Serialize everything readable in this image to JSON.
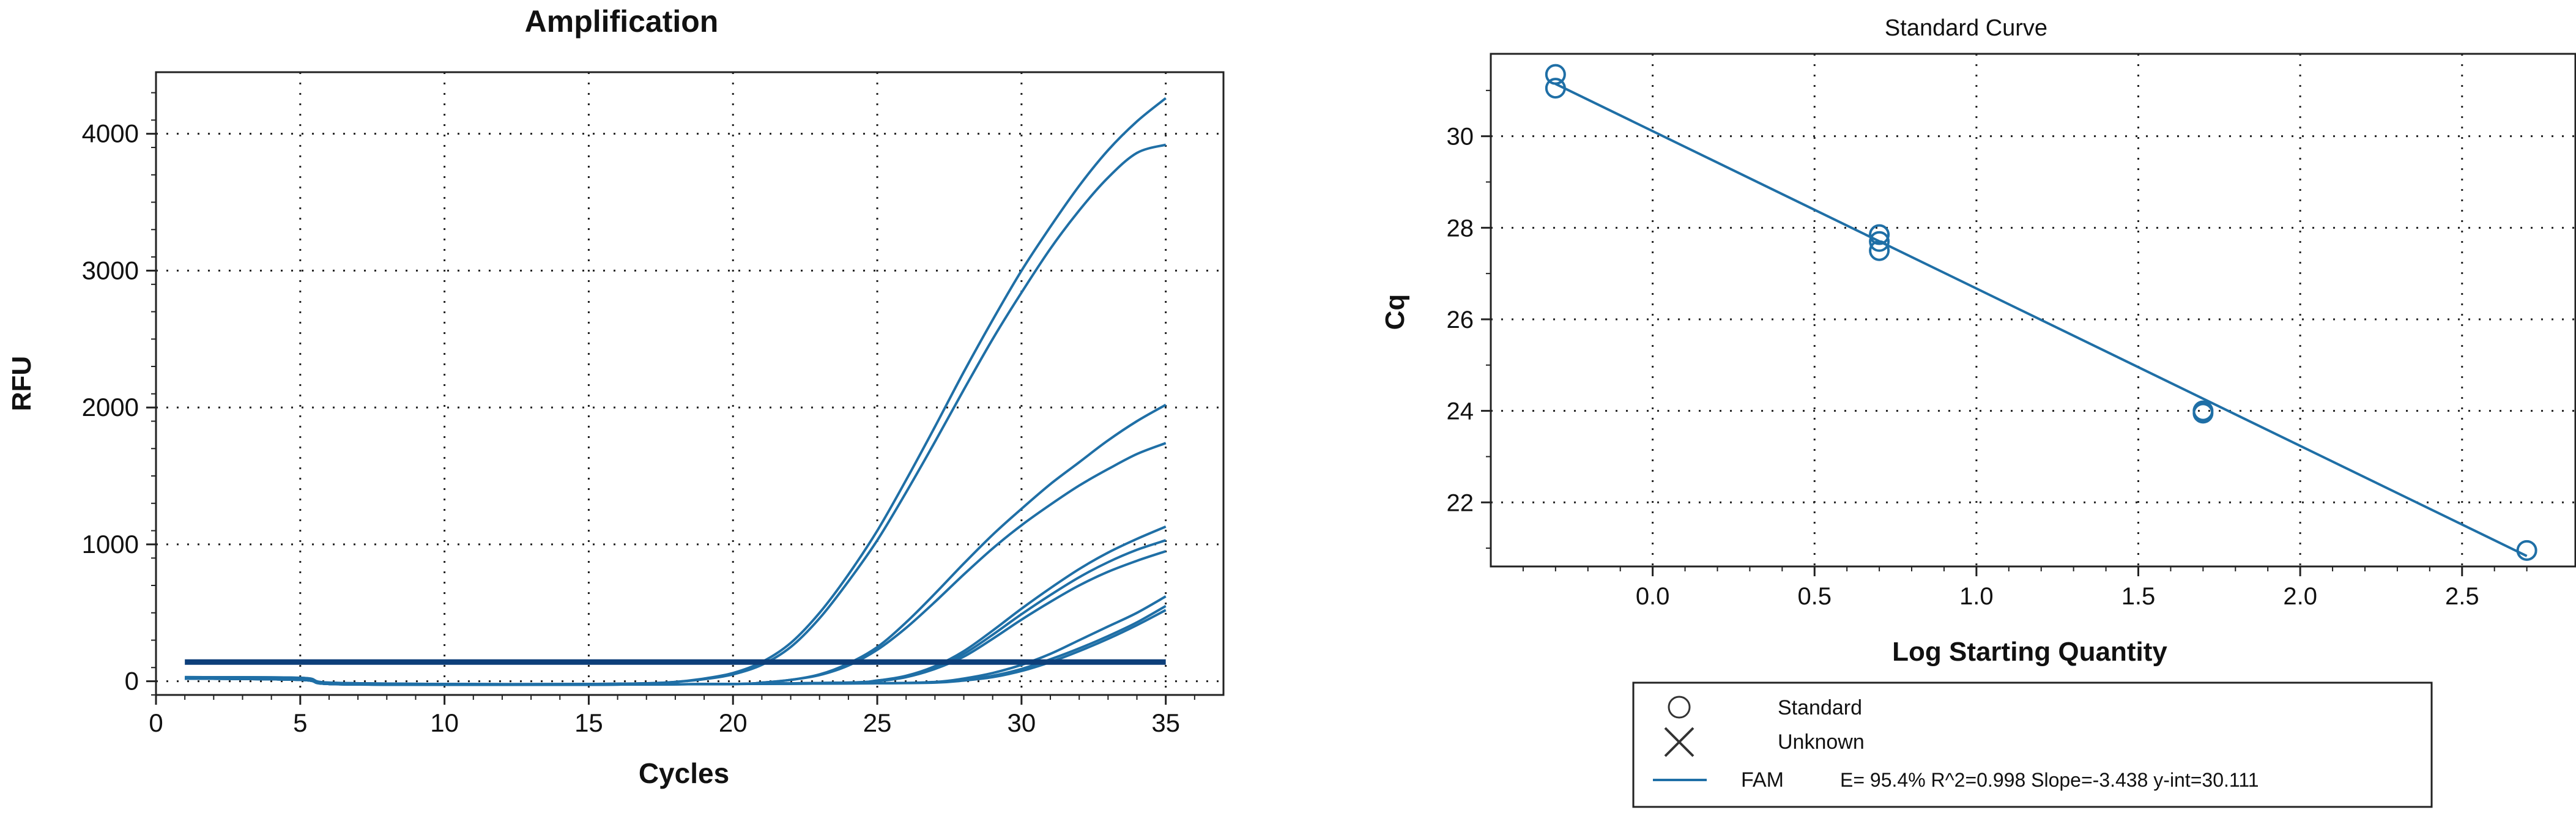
{
  "chart_data": [
    {
      "type": "line",
      "title": "Amplification",
      "xlabel": "Cycles",
      "ylabel": "RFU",
      "xlim": [
        0,
        37
      ],
      "ylim": [
        -100,
        4450
      ],
      "xticks": [
        0,
        5,
        10,
        15,
        20,
        25,
        30,
        35
      ],
      "yticks": [
        0,
        1000,
        2000,
        3000,
        4000
      ],
      "grid": true,
      "line_color": "#1f6fa6",
      "threshold": {
        "value": 140,
        "x_range": [
          1,
          35
        ],
        "color": "#0d3f7a"
      },
      "series": [
        {
          "x": [
            1,
            5,
            6,
            10,
            15,
            17,
            18,
            19,
            20,
            21,
            22,
            23,
            24,
            25,
            26,
            27,
            28,
            29,
            30,
            31,
            32,
            33,
            34,
            35
          ],
          "values": [
            30,
            25,
            -10,
            -20,
            -20,
            -15,
            -5,
            20,
            60,
            140,
            280,
            500,
            780,
            1100,
            1470,
            1860,
            2260,
            2640,
            3000,
            3320,
            3620,
            3880,
            4090,
            4260
          ]
        },
        {
          "x": [
            1,
            5,
            6,
            10,
            15,
            17,
            18,
            19,
            20,
            21,
            22,
            23,
            24,
            25,
            26,
            27,
            28,
            29,
            30,
            31,
            32,
            33,
            34,
            35
          ],
          "values": [
            30,
            25,
            -10,
            -20,
            -20,
            -15,
            -5,
            15,
            50,
            120,
            250,
            460,
            730,
            1030,
            1380,
            1750,
            2130,
            2500,
            2840,
            3160,
            3440,
            3680,
            3860,
            3920
          ]
        },
        {
          "x": [
            1,
            5,
            6,
            10,
            15,
            20,
            21,
            22,
            23,
            24,
            25,
            26,
            27,
            28,
            29,
            30,
            31,
            32,
            33,
            34,
            35
          ],
          "values": [
            20,
            15,
            -20,
            -25,
            -25,
            -20,
            -10,
            10,
            50,
            130,
            250,
            430,
            640,
            860,
            1070,
            1260,
            1440,
            1600,
            1760,
            1900,
            2020
          ]
        },
        {
          "x": [
            1,
            5,
            6,
            10,
            15,
            20,
            21,
            22,
            23,
            24,
            25,
            26,
            27,
            28,
            29,
            30,
            31,
            32,
            33,
            34,
            35
          ],
          "values": [
            20,
            15,
            -20,
            -25,
            -25,
            -20,
            -10,
            10,
            45,
            115,
            230,
            390,
            580,
            780,
            970,
            1140,
            1290,
            1430,
            1550,
            1660,
            1740
          ]
        },
        {
          "x": [
            1,
            5,
            6,
            10,
            15,
            20,
            24,
            25,
            26,
            27,
            28,
            29,
            30,
            31,
            32,
            33,
            34,
            35
          ],
          "values": [
            20,
            10,
            -20,
            -25,
            -25,
            -20,
            -10,
            5,
            40,
            110,
            220,
            370,
            530,
            680,
            820,
            940,
            1040,
            1130
          ]
        },
        {
          "x": [
            1,
            5,
            6,
            10,
            15,
            20,
            24,
            25,
            26,
            27,
            28,
            29,
            30,
            31,
            32,
            33,
            34,
            35
          ],
          "values": [
            20,
            10,
            -20,
            -25,
            -25,
            -20,
            -10,
            5,
            35,
            100,
            200,
            340,
            490,
            630,
            760,
            870,
            960,
            1030
          ]
        },
        {
          "x": [
            1,
            5,
            6,
            10,
            15,
            20,
            24,
            25,
            26,
            27,
            28,
            29,
            30,
            31,
            32,
            33,
            34,
            35
          ],
          "values": [
            20,
            10,
            -20,
            -25,
            -25,
            -20,
            -10,
            0,
            30,
            90,
            180,
            310,
            450,
            580,
            700,
            800,
            880,
            950
          ]
        },
        {
          "x": [
            1,
            5,
            6,
            10,
            15,
            20,
            25,
            27,
            28,
            29,
            30,
            31,
            32,
            33,
            34,
            35
          ],
          "values": [
            20,
            10,
            -20,
            -25,
            -25,
            -20,
            -15,
            -5,
            20,
            60,
            120,
            200,
            300,
            400,
            500,
            620
          ]
        },
        {
          "x": [
            1,
            5,
            6,
            10,
            15,
            20,
            25,
            27,
            28,
            29,
            30,
            31,
            32,
            33,
            34,
            35
          ],
          "values": [
            20,
            10,
            -20,
            -25,
            -25,
            -20,
            -15,
            -8,
            10,
            40,
            90,
            160,
            240,
            330,
            430,
            550
          ]
        },
        {
          "x": [
            1,
            5,
            6,
            10,
            15,
            20,
            25,
            27,
            28,
            29,
            30,
            31,
            32,
            33,
            34,
            35
          ],
          "values": [
            20,
            10,
            -20,
            -25,
            -25,
            -20,
            -15,
            -10,
            5,
            30,
            75,
            140,
            220,
            310,
            410,
            520
          ]
        }
      ]
    },
    {
      "type": "scatter",
      "title": "Standard Curve",
      "xlabel": "Log Starting Quantity",
      "ylabel": "Cq",
      "xlim": [
        -0.5,
        2.85
      ],
      "ylim": [
        20.6,
        31.8
      ],
      "xticks": [
        0.0,
        0.5,
        1.0,
        1.5,
        2.0,
        2.5
      ],
      "xtick_labels": [
        "0.0",
        "0.5",
        "1.0",
        "1.5",
        "2.0",
        "2.5"
      ],
      "yticks": [
        22,
        24,
        26,
        28,
        30
      ],
      "grid": true,
      "color": "#1f6fa6",
      "points": [
        {
          "x": -0.3,
          "y": 31.35
        },
        {
          "x": -0.3,
          "y": 31.05
        },
        {
          "x": 0.7,
          "y": 27.85
        },
        {
          "x": 0.7,
          "y": 27.7
        },
        {
          "x": 0.7,
          "y": 27.5
        },
        {
          "x": 1.7,
          "y": 24.0
        },
        {
          "x": 1.7,
          "y": 23.95
        },
        {
          "x": 2.7,
          "y": 20.95
        }
      ],
      "fit_line": {
        "slope": -3.438,
        "intercept": 30.111,
        "x_range": [
          -0.3,
          2.7
        ]
      },
      "legend": [
        {
          "symbol": "circle",
          "label": "Standard"
        },
        {
          "symbol": "cross",
          "label": "Unknown"
        },
        {
          "symbol": "line",
          "label": "FAM",
          "stats": "E= 95.4% R^2=0.998 Slope=-3.438 y-int=30.111"
        }
      ]
    }
  ]
}
